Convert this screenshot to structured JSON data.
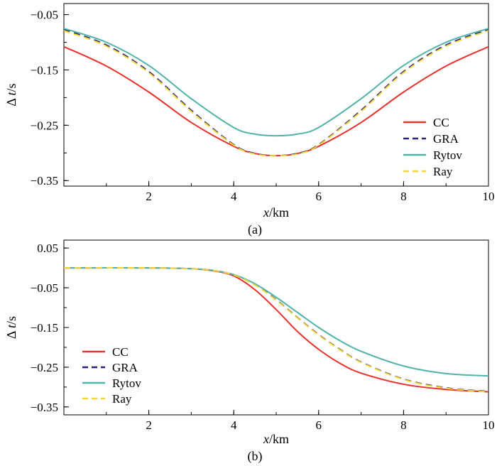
{
  "chart_data": [
    {
      "type": "line",
      "panel": "a",
      "caption": "(a)",
      "xlabel_italic": "x",
      "xlabel_unit": "/km",
      "ylabel_prefix": "Δ",
      "ylabel_italic": "t",
      "ylabel_unit": "/s",
      "xlim": [
        0,
        10
      ],
      "ylim": [
        -0.36,
        -0.03
      ],
      "xticks": [
        2,
        4,
        6,
        8,
        10
      ],
      "xtick_labels": [
        "2",
        "4",
        "6",
        "8",
        "10"
      ],
      "yticks": [
        -0.05,
        -0.15,
        -0.25,
        -0.35
      ],
      "ytick_labels": [
        "−0.05",
        "−0.15",
        "−0.25",
        "−0.35"
      ],
      "legend_position": "right",
      "series": [
        {
          "name": "CC",
          "color": "#e8312a",
          "dash": "solid",
          "x": [
            0,
            1,
            2,
            3,
            4,
            4.5,
            5,
            5.5,
            6,
            7,
            8,
            9,
            10
          ],
          "y": [
            -0.108,
            -0.143,
            -0.19,
            -0.245,
            -0.288,
            -0.301,
            -0.305,
            -0.301,
            -0.288,
            -0.245,
            -0.19,
            -0.143,
            -0.108
          ]
        },
        {
          "name": "GRA",
          "color": "#2a2370",
          "dash": "dashed",
          "x": [
            0,
            1,
            2,
            3,
            4,
            4.5,
            5,
            5.5,
            6,
            7,
            8,
            9,
            10
          ],
          "y": [
            -0.077,
            -0.105,
            -0.153,
            -0.223,
            -0.285,
            -0.301,
            -0.305,
            -0.301,
            -0.285,
            -0.223,
            -0.153,
            -0.105,
            -0.077
          ]
        },
        {
          "name": "Rytov",
          "color": "#4fb3aa",
          "dash": "solid",
          "x": [
            0,
            1,
            2,
            3,
            4,
            4.5,
            5,
            5.5,
            6,
            7,
            8,
            9,
            10
          ],
          "y": [
            -0.075,
            -0.1,
            -0.142,
            -0.202,
            -0.254,
            -0.266,
            -0.269,
            -0.266,
            -0.254,
            -0.202,
            -0.142,
            -0.1,
            -0.075
          ]
        },
        {
          "name": "Ray",
          "color": "#f2d53c",
          "dash": "dashed",
          "x": [
            0,
            1,
            2,
            3,
            4,
            4.5,
            5,
            5.5,
            6,
            7,
            8,
            9,
            10
          ],
          "y": [
            -0.079,
            -0.107,
            -0.155,
            -0.225,
            -0.286,
            -0.302,
            -0.305,
            -0.302,
            -0.286,
            -0.225,
            -0.155,
            -0.107,
            -0.079
          ]
        }
      ]
    },
    {
      "type": "line",
      "panel": "b",
      "caption": "(b)",
      "xlabel_italic": "x",
      "xlabel_unit": "/km",
      "ylabel_prefix": "Δ",
      "ylabel_italic": "t",
      "ylabel_unit": "/s",
      "xlim": [
        0,
        10
      ],
      "ylim": [
        -0.37,
        0.07
      ],
      "xticks": [
        2,
        4,
        6,
        8,
        10
      ],
      "xtick_labels": [
        "2",
        "4",
        "6",
        "8",
        "10"
      ],
      "yticks": [
        0.05,
        -0.05,
        -0.15,
        -0.25,
        -0.35
      ],
      "ytick_labels": [
        "0.05",
        "−0.05",
        "−0.15",
        "−0.25",
        "−0.35"
      ],
      "legend_position": "bottom-left",
      "series": [
        {
          "name": "CC",
          "color": "#e8312a",
          "dash": "solid",
          "x": [
            0,
            2,
            3,
            3.5,
            4,
            4.5,
            5,
            5.5,
            6,
            6.5,
            7,
            8,
            9,
            10
          ],
          "y": [
            0,
            0,
            -0.002,
            -0.007,
            -0.02,
            -0.055,
            -0.105,
            -0.16,
            -0.205,
            -0.24,
            -0.265,
            -0.293,
            -0.306,
            -0.312
          ]
        },
        {
          "name": "GRA",
          "color": "#2a2370",
          "dash": "dashed",
          "x": [
            0,
            2,
            3,
            3.5,
            4,
            4.5,
            5,
            5.5,
            6,
            6.5,
            7,
            8,
            9,
            10
          ],
          "y": [
            0,
            0,
            -0.002,
            -0.006,
            -0.018,
            -0.042,
            -0.08,
            -0.125,
            -0.168,
            -0.205,
            -0.237,
            -0.28,
            -0.302,
            -0.311
          ]
        },
        {
          "name": "Rytov",
          "color": "#4fb3aa",
          "dash": "solid",
          "x": [
            0,
            2,
            3,
            3.5,
            4,
            4.5,
            5,
            5.5,
            6,
            6.5,
            7,
            8,
            9,
            10
          ],
          "y": [
            0,
            0,
            -0.002,
            -0.006,
            -0.017,
            -0.04,
            -0.074,
            -0.112,
            -0.15,
            -0.183,
            -0.21,
            -0.247,
            -0.266,
            -0.272
          ]
        },
        {
          "name": "Ray",
          "color": "#f2d53c",
          "dash": "dashed",
          "x": [
            0,
            2,
            3,
            3.5,
            4,
            4.5,
            5,
            5.5,
            6,
            6.5,
            7,
            8,
            9,
            10
          ],
          "y": [
            0,
            0,
            -0.002,
            -0.006,
            -0.018,
            -0.043,
            -0.081,
            -0.126,
            -0.169,
            -0.206,
            -0.238,
            -0.281,
            -0.303,
            -0.312
          ]
        }
      ]
    }
  ]
}
